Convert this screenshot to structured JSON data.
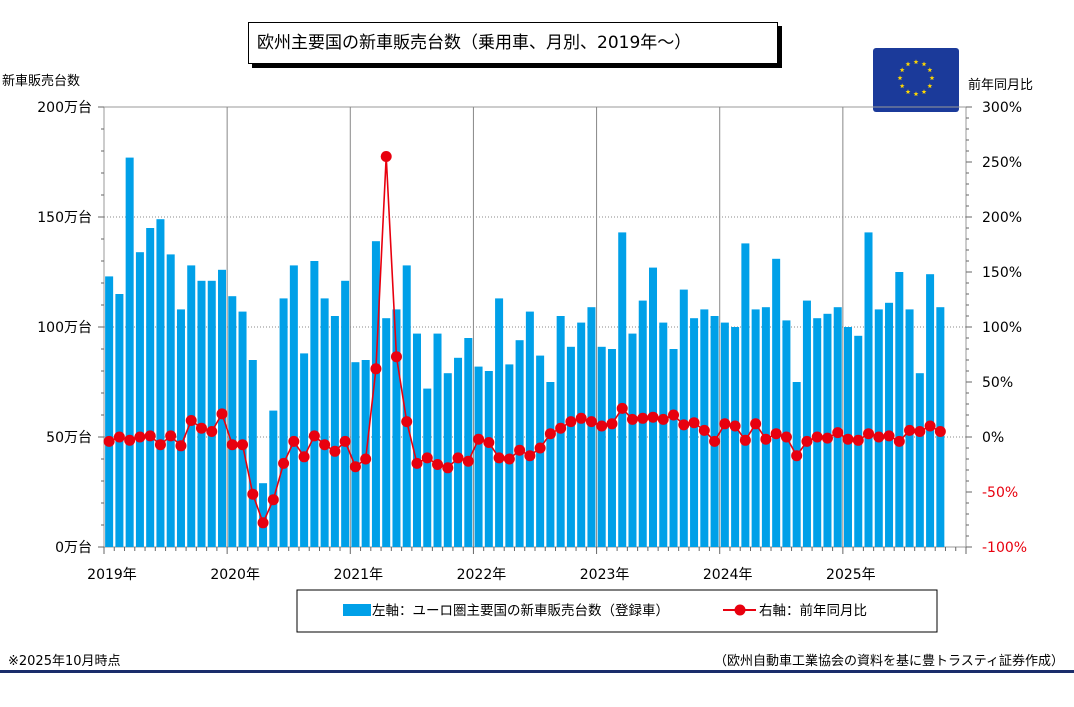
{
  "chart_data": {
    "type": "bar+line",
    "title": "欧州主要国の新車販売台数（乗用車、月別、2019年〜）",
    "left_axis_label": "新車販売台数",
    "right_axis_label": "前年同月比",
    "left_ticks": [
      "0万台",
      "50万台",
      "100万台",
      "150万台",
      "200万台"
    ],
    "left_tick_values": [
      0,
      50,
      100,
      150,
      200
    ],
    "right_ticks": [
      "-100%",
      "-50%",
      "0%",
      "50%",
      "100%",
      "150%",
      "200%",
      "250%",
      "300%"
    ],
    "right_tick_values": [
      -100,
      -50,
      0,
      50,
      100,
      150,
      200,
      250,
      300
    ],
    "ylim_left": [
      0,
      200
    ],
    "ylim_right": [
      -100,
      300
    ],
    "year_labels": [
      "2019年",
      "2020年",
      "2021年",
      "2022年",
      "2023年",
      "2024年",
      "2025年"
    ],
    "legend": {
      "bar": "左軸：ユーロ圏主要国の新車販売台数（登録車）",
      "line": "右軸：前年同月比"
    },
    "colors": {
      "bar": "#00a0e8",
      "line": "#e8000e",
      "negative_tick": "#e8000e",
      "flag_bg": "#1b3a9a",
      "flag_star": "#ffd700",
      "rule": "#1a2d6b"
    },
    "series": [
      {
        "name": "ユーロ圏主要国の新車販売台数（登録車）",
        "axis": "left",
        "unit": "万台",
        "values": [
          123,
          115,
          177,
          134,
          145,
          149,
          133,
          108,
          128,
          121,
          121,
          126,
          114,
          107,
          85,
          29,
          62,
          113,
          128,
          88,
          130,
          113,
          105,
          121,
          84,
          85,
          139,
          104,
          108,
          128,
          97,
          72,
          97,
          79,
          86,
          95,
          82,
          80,
          113,
          83,
          94,
          107,
          87,
          75,
          105,
          91,
          102,
          109,
          91,
          90,
          143,
          97,
          112,
          127,
          102,
          90,
          117,
          104,
          108,
          105,
          102,
          100,
          138,
          108,
          109,
          131,
          103,
          75,
          112,
          104,
          106,
          109,
          100,
          96,
          143,
          108,
          111,
          125,
          108,
          79,
          124,
          109
        ]
      },
      {
        "name": "前年同月比",
        "axis": "right",
        "unit": "%",
        "values": [
          -4,
          0,
          -3,
          0,
          1,
          -7,
          1,
          -8,
          15,
          8,
          5,
          21,
          -7,
          -7,
          -52,
          -78,
          -57,
          -24,
          -4,
          -18,
          1,
          -7,
          -13,
          -4,
          -27,
          -20,
          62,
          255,
          73,
          14,
          -24,
          -19,
          -25,
          -28,
          -19,
          -22,
          -2,
          -5,
          -19,
          -20,
          -12,
          -17,
          -10,
          3,
          8,
          14,
          17,
          14,
          10,
          12,
          26,
          16,
          17,
          18,
          16,
          20,
          11,
          13,
          6,
          -4,
          12,
          10,
          -3,
          12,
          -2,
          3,
          0,
          -17,
          -4,
          0,
          -1,
          4,
          -2,
          -3,
          3,
          0,
          1,
          -4,
          6,
          5,
          10,
          5
        ]
      }
    ],
    "footnote_left": "※2025年10月時点",
    "footnote_right": "（欧州自動車工業協会の資料を基に豊トラスティ証券作成）"
  }
}
